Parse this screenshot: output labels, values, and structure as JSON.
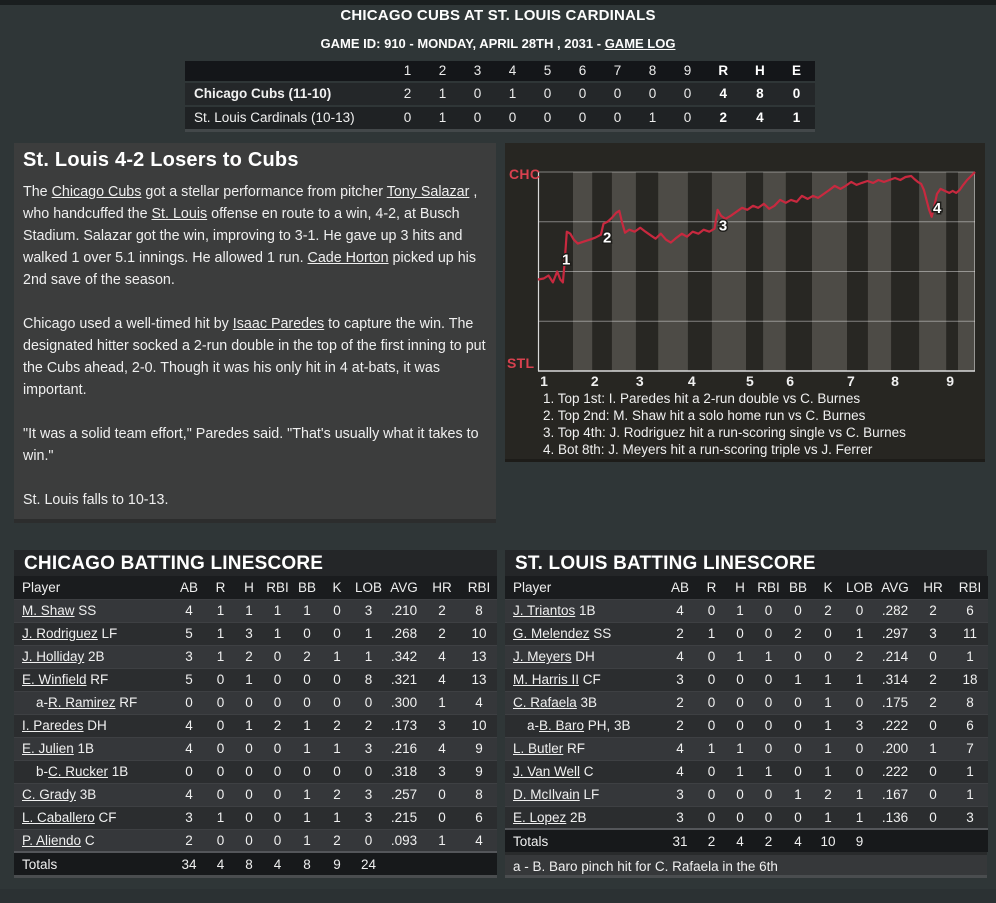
{
  "header": {
    "title": "CHICAGO CUBS AT ST. LOUIS CARDINALS",
    "meta_prefix": "GAME ID: 910 - MONDAY, APRIL 28TH , 2031 - ",
    "game_log": "GAME LOG"
  },
  "linescore": {
    "columns": [
      "1",
      "2",
      "3",
      "4",
      "5",
      "6",
      "7",
      "8",
      "9",
      "R",
      "H",
      "E"
    ],
    "rows": [
      {
        "team": "Chicago Cubs (11-10)",
        "bold": true,
        "innings": [
          "2",
          "1",
          "0",
          "1",
          "0",
          "0",
          "0",
          "0",
          "0"
        ],
        "r": "4",
        "h": "8",
        "e": "0"
      },
      {
        "team": "St. Louis Cardinals (10-13)",
        "bold": false,
        "innings": [
          "0",
          "1",
          "0",
          "0",
          "0",
          "0",
          "0",
          "1",
          "0"
        ],
        "r": "2",
        "h": "4",
        "e": "1"
      }
    ]
  },
  "article": {
    "headline": "St. Louis 4-2 Losers to Cubs",
    "paragraphs": [
      [
        {
          "t": "The "
        },
        {
          "t": "Chicago Cubs",
          "link": true
        },
        {
          "t": " got a stellar performance from pitcher "
        },
        {
          "t": "Tony Salazar",
          "link": true
        },
        {
          "t": " , who handcuffed the "
        },
        {
          "t": "St. Louis",
          "link": true
        },
        {
          "t": " offense en route to a win, 4-2, at Busch Stadium. Salazar got the win, improving to 3-1. He gave up 3 hits and walked 1 over 5.1 innings. He allowed 1 run. "
        },
        {
          "t": "Cade Horton",
          "link": true
        },
        {
          "t": " picked up his 2nd save of the season."
        }
      ],
      [
        {
          "t": "Chicago used a well-timed hit by "
        },
        {
          "t": "Isaac Paredes",
          "link": true
        },
        {
          "t": " to capture the win. The designated hitter socked a 2-run double in the top of the first inning to put the Cubs ahead, 2-0. Though it was his only hit in 4 at-bats, it was important."
        }
      ],
      [
        {
          "t": "\"It was a solid team effort,\" Paredes said. \"That's usually what it takes to win.\""
        }
      ],
      [
        {
          "t": "St. Louis falls to 10-13."
        }
      ]
    ]
  },
  "chart": {
    "type": "line",
    "title": "win probability",
    "team_top": "CHC",
    "team_bottom": "STL",
    "colors": {
      "plot_bg": "#282723",
      "stripe": "#4d4b46",
      "line": "#c8293f",
      "label": "#d8414f"
    },
    "x_ticks": [
      {
        "label": "1",
        "f": 0.0137
      },
      {
        "label": "2",
        "f": 0.13
      },
      {
        "label": "3",
        "f": 0.233
      },
      {
        "label": "4",
        "f": 0.352
      },
      {
        "label": "5",
        "f": 0.485
      },
      {
        "label": "6",
        "f": 0.577
      },
      {
        "label": "7",
        "f": 0.716
      },
      {
        "label": "8",
        "f": 0.817
      },
      {
        "label": "9",
        "f": 0.943
      }
    ],
    "stripes": [
      [
        0.08,
        0.124
      ],
      [
        0.169,
        0.224
      ],
      [
        0.275,
        0.343
      ],
      [
        0.398,
        0.476
      ],
      [
        0.515,
        0.567
      ],
      [
        0.627,
        0.707
      ],
      [
        0.755,
        0.808
      ],
      [
        0.872,
        0.934
      ],
      [
        0.961,
        1.0
      ]
    ],
    "annotations": [
      {
        "n": "1",
        "f": 0.064,
        "p": 56
      },
      {
        "n": "2",
        "f": 0.158,
        "p": 67
      },
      {
        "n": "3",
        "f": 0.423,
        "p": 73
      },
      {
        "n": "4",
        "f": 0.913,
        "p": 82
      }
    ],
    "series_chc_win_prob": [
      [
        0.0,
        46
      ],
      [
        0.013,
        46.5
      ],
      [
        0.024,
        48
      ],
      [
        0.034,
        44.5
      ],
      [
        0.044,
        50
      ],
      [
        0.051,
        46
      ],
      [
        0.057,
        44.5
      ],
      [
        0.061,
        55
      ],
      [
        0.066,
        70
      ],
      [
        0.074,
        69
      ],
      [
        0.082,
        66
      ],
      [
        0.091,
        64
      ],
      [
        0.104,
        65
      ],
      [
        0.118,
        66
      ],
      [
        0.131,
        67
      ],
      [
        0.144,
        68.5
      ],
      [
        0.15,
        74
      ],
      [
        0.159,
        75
      ],
      [
        0.169,
        77
      ],
      [
        0.179,
        79.5
      ],
      [
        0.186,
        80.5
      ],
      [
        0.192,
        75
      ],
      [
        0.199,
        69.5
      ],
      [
        0.209,
        71
      ],
      [
        0.221,
        70
      ],
      [
        0.234,
        72
      ],
      [
        0.246,
        70
      ],
      [
        0.259,
        68
      ],
      [
        0.269,
        66.5
      ],
      [
        0.281,
        69
      ],
      [
        0.293,
        66
      ],
      [
        0.304,
        64.5
      ],
      [
        0.317,
        67
      ],
      [
        0.329,
        69
      ],
      [
        0.341,
        67.5
      ],
      [
        0.354,
        70
      ],
      [
        0.367,
        69
      ],
      [
        0.379,
        71
      ],
      [
        0.392,
        70
      ],
      [
        0.404,
        71.5
      ],
      [
        0.411,
        81
      ],
      [
        0.419,
        78
      ],
      [
        0.429,
        76.5
      ],
      [
        0.441,
        78
      ],
      [
        0.454,
        80
      ],
      [
        0.467,
        82
      ],
      [
        0.479,
        81
      ],
      [
        0.492,
        83
      ],
      [
        0.504,
        82
      ],
      [
        0.517,
        84
      ],
      [
        0.529,
        81.5
      ],
      [
        0.541,
        83
      ],
      [
        0.554,
        86
      ],
      [
        0.567,
        84.5
      ],
      [
        0.579,
        86
      ],
      [
        0.592,
        85
      ],
      [
        0.604,
        88
      ],
      [
        0.617,
        86.5
      ],
      [
        0.629,
        88
      ],
      [
        0.641,
        87
      ],
      [
        0.654,
        89
      ],
      [
        0.667,
        91
      ],
      [
        0.679,
        93
      ],
      [
        0.692,
        91.5
      ],
      [
        0.704,
        93
      ],
      [
        0.717,
        95
      ],
      [
        0.729,
        93.5
      ],
      [
        0.741,
        94.5
      ],
      [
        0.754,
        95.5
      ],
      [
        0.767,
        94.5
      ],
      [
        0.779,
        96
      ],
      [
        0.792,
        95
      ],
      [
        0.804,
        96
      ],
      [
        0.817,
        97
      ],
      [
        0.829,
        96
      ],
      [
        0.841,
        97.5
      ],
      [
        0.854,
        98
      ],
      [
        0.861,
        96.5
      ],
      [
        0.869,
        95
      ],
      [
        0.877,
        94
      ],
      [
        0.883,
        91
      ],
      [
        0.889,
        86
      ],
      [
        0.895,
        81
      ],
      [
        0.901,
        77.5
      ],
      [
        0.907,
        83
      ],
      [
        0.913,
        89
      ],
      [
        0.921,
        91.5
      ],
      [
        0.931,
        90.5
      ],
      [
        0.941,
        89.5
      ],
      [
        0.949,
        90.5
      ],
      [
        0.957,
        89.5
      ],
      [
        0.965,
        91
      ],
      [
        0.973,
        93.5
      ],
      [
        0.982,
        96
      ],
      [
        0.991,
        98
      ],
      [
        1.0,
        100
      ]
    ],
    "plays": [
      "1. Top 1st: I. Paredes hit a 2-run double vs C. Burnes",
      "2. Top 2nd: M. Shaw hit a solo home run vs C. Burnes",
      "3. Top 4th: J. Rodriguez hit a run-scoring single vs C. Burnes",
      "4. Bot 8th: J. Meyers hit a run-scoring triple vs J. Ferrer"
    ]
  },
  "batting_chc": {
    "title": "CHICAGO BATTING LINESCORE",
    "columns": [
      "Player",
      "AB",
      "R",
      "H",
      "RBI",
      "BB",
      "K",
      "LOB",
      "AVG",
      "HR",
      "RBI"
    ],
    "rows": [
      {
        "name": "M. Shaw",
        "pos": "SS",
        "stats": [
          "4",
          "1",
          "1",
          "1",
          "1",
          "0",
          "3",
          ".210",
          "2",
          "8"
        ]
      },
      {
        "name": "J. Rodriguez",
        "pos": "LF",
        "stats": [
          "5",
          "1",
          "3",
          "1",
          "0",
          "0",
          "1",
          ".268",
          "2",
          "10"
        ]
      },
      {
        "name": "J. Holliday",
        "pos": "2B",
        "stats": [
          "3",
          "1",
          "2",
          "0",
          "2",
          "1",
          "1",
          ".342",
          "4",
          "13"
        ]
      },
      {
        "name": "E. Winfield",
        "pos": "RF",
        "stats": [
          "5",
          "0",
          "1",
          "0",
          "0",
          "0",
          "8",
          ".321",
          "4",
          "13"
        ]
      },
      {
        "prefix": "a-",
        "name": "R. Ramirez",
        "pos": "RF",
        "indent": true,
        "stats": [
          "0",
          "0",
          "0",
          "0",
          "0",
          "0",
          "0",
          ".300",
          "1",
          "4"
        ]
      },
      {
        "name": "I. Paredes",
        "pos": "DH",
        "stats": [
          "4",
          "0",
          "1",
          "2",
          "1",
          "2",
          "2",
          ".173",
          "3",
          "10"
        ]
      },
      {
        "name": "E. Julien",
        "pos": "1B",
        "stats": [
          "4",
          "0",
          "0",
          "0",
          "1",
          "1",
          "3",
          ".216",
          "4",
          "9"
        ]
      },
      {
        "prefix": "b-",
        "name": "C. Rucker",
        "pos": "1B",
        "indent": true,
        "stats": [
          "0",
          "0",
          "0",
          "0",
          "0",
          "0",
          "0",
          ".318",
          "3",
          "9"
        ]
      },
      {
        "name": "C. Grady",
        "pos": "3B",
        "stats": [
          "4",
          "0",
          "0",
          "0",
          "1",
          "2",
          "3",
          ".257",
          "0",
          "8"
        ]
      },
      {
        "name": "L. Caballero",
        "pos": "CF",
        "stats": [
          "3",
          "1",
          "0",
          "0",
          "1",
          "1",
          "3",
          ".215",
          "0",
          "6"
        ]
      },
      {
        "name": "P. Aliendo",
        "pos": "C",
        "stats": [
          "2",
          "0",
          "0",
          "0",
          "1",
          "2",
          "0",
          ".093",
          "1",
          "4"
        ]
      }
    ],
    "totals_label": "Totals",
    "totals": [
      "34",
      "4",
      "8",
      "4",
      "8",
      "9",
      "24",
      "",
      "",
      ""
    ]
  },
  "batting_stl": {
    "title": "ST. LOUIS BATTING LINESCORE",
    "columns": [
      "Player",
      "AB",
      "R",
      "H",
      "RBI",
      "BB",
      "K",
      "LOB",
      "AVG",
      "HR",
      "RBI"
    ],
    "rows": [
      {
        "name": "J. Triantos",
        "pos": "1B",
        "stats": [
          "4",
          "0",
          "1",
          "0",
          "0",
          "2",
          "0",
          ".282",
          "2",
          "6"
        ]
      },
      {
        "name": "G. Melendez",
        "pos": "SS",
        "stats": [
          "2",
          "1",
          "0",
          "0",
          "2",
          "0",
          "1",
          ".297",
          "3",
          "11"
        ]
      },
      {
        "name": "J. Meyers",
        "pos": "DH",
        "stats": [
          "4",
          "0",
          "1",
          "1",
          "0",
          "0",
          "2",
          ".214",
          "0",
          "1"
        ]
      },
      {
        "name": "M. Harris II",
        "pos": "CF",
        "stats": [
          "3",
          "0",
          "0",
          "0",
          "1",
          "1",
          "1",
          ".314",
          "2",
          "18"
        ]
      },
      {
        "name": "C. Rafaela",
        "pos": "3B",
        "stats": [
          "2",
          "0",
          "0",
          "0",
          "0",
          "1",
          "0",
          ".175",
          "2",
          "8"
        ]
      },
      {
        "prefix": "a-",
        "name": "B. Baro",
        "pos": "PH, 3B",
        "indent": true,
        "stats": [
          "2",
          "0",
          "0",
          "0",
          "0",
          "1",
          "3",
          ".222",
          "0",
          "6"
        ]
      },
      {
        "name": "L. Butler",
        "pos": "RF",
        "stats": [
          "4",
          "1",
          "1",
          "0",
          "0",
          "1",
          "0",
          ".200",
          "1",
          "7"
        ]
      },
      {
        "name": "J. Van Well",
        "pos": "C",
        "stats": [
          "4",
          "0",
          "1",
          "1",
          "0",
          "1",
          "0",
          ".222",
          "0",
          "1"
        ]
      },
      {
        "name": "D. McIlvain",
        "pos": "LF",
        "stats": [
          "3",
          "0",
          "0",
          "0",
          "1",
          "2",
          "1",
          ".167",
          "0",
          "1"
        ]
      },
      {
        "name": "E. Lopez",
        "pos": "2B",
        "stats": [
          "3",
          "0",
          "0",
          "0",
          "0",
          "1",
          "1",
          ".136",
          "0",
          "3"
        ]
      }
    ],
    "totals_label": "Totals",
    "totals": [
      "31",
      "2",
      "4",
      "2",
      "4",
      "10",
      "9",
      "",
      "",
      ""
    ],
    "footnote": "a - B. Baro pinch hit for C. Rafaela in the 6th"
  }
}
